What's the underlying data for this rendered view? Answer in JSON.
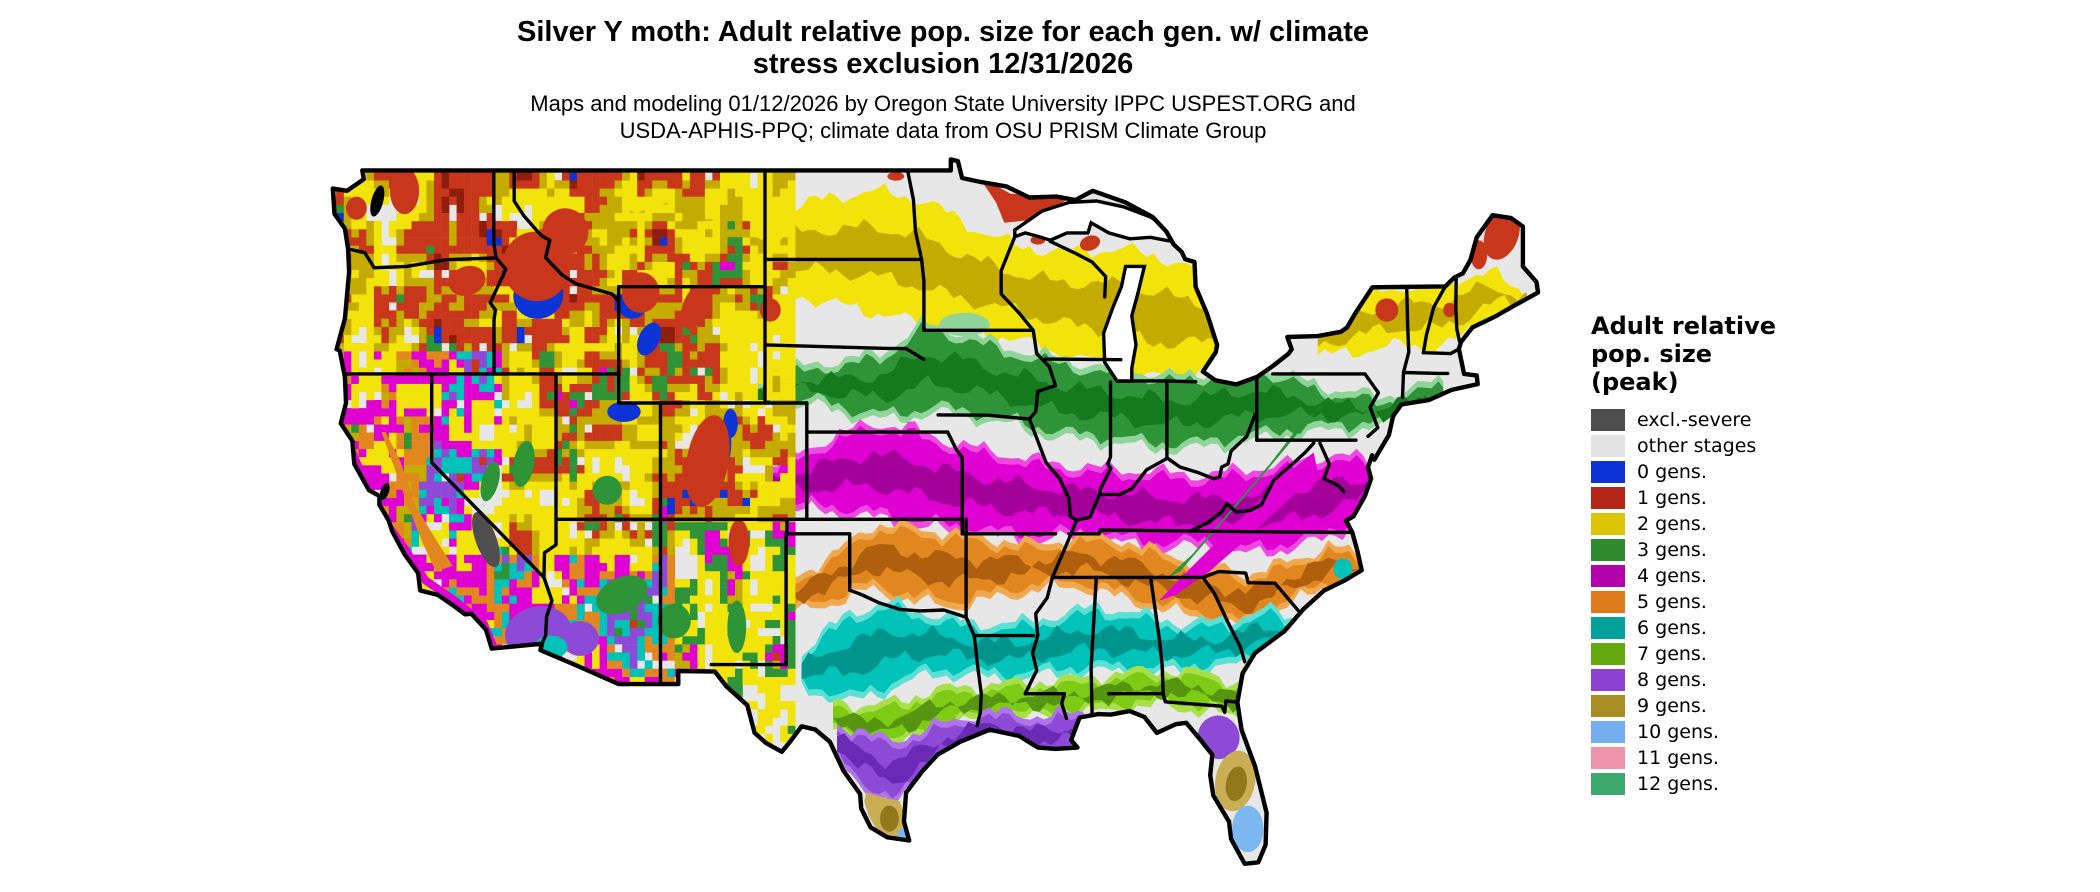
{
  "title": {
    "line1": "Silver Y moth: Adult relative pop. size for each gen. w/ climate",
    "line2": "stress exclusion 12/31/2026"
  },
  "subtitle": {
    "line1": "Maps and modeling 01/12/2026 by Oregon State University IPPC USPEST.ORG and",
    "line2": "USDA-APHIS-PPQ; climate data from OSU PRISM Climate Group"
  },
  "legend": {
    "title_line1": "Adult relative",
    "title_line2": "pop. size",
    "title_line3": "(peak)",
    "entries": [
      {
        "label": "excl.-severe",
        "color": "#4f4f4f"
      },
      {
        "label": "other stages",
        "color": "#e3e3e3"
      },
      {
        "label": "0 gens.",
        "color": "#0b33d5"
      },
      {
        "label": "1 gens.",
        "color": "#b22517"
      },
      {
        "label": "2 gens.",
        "color": "#dcc405"
      },
      {
        "label": "3 gens.",
        "color": "#2e8b2e"
      },
      {
        "label": "4 gens.",
        "color": "#b303aa"
      },
      {
        "label": "5 gens.",
        "color": "#de7a1c"
      },
      {
        "label": "6 gens.",
        "color": "#04a29b"
      },
      {
        "label": "7 gens.",
        "color": "#64aa0f"
      },
      {
        "label": "8 gens.",
        "color": "#8b42d3"
      },
      {
        "label": "9 gens.",
        "color": "#a78d22"
      },
      {
        "label": "10 gens.",
        "color": "#74aeef"
      },
      {
        "label": "11 gens.",
        "color": "#f094ae"
      },
      {
        "label": "12 gens.",
        "color": "#3caa6c"
      }
    ]
  },
  "map": {
    "region": "Contiguous United States",
    "background_color": "#e7e7e7",
    "boundary_color": "#000000"
  }
}
